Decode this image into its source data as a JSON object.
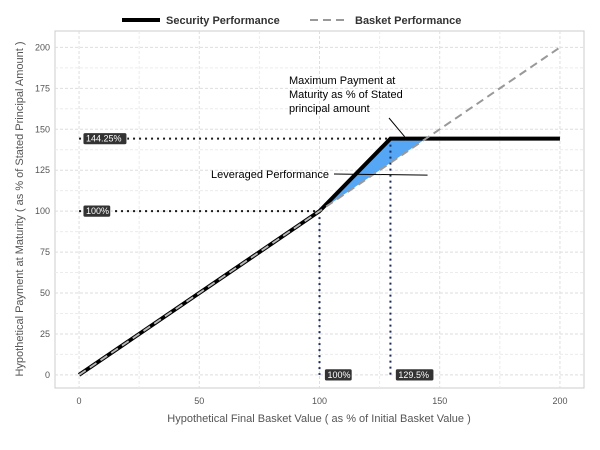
{
  "chart_data": {
    "type": "line",
    "xlabel": "Hypothetical Final Basket Value ( as % of Initial Basket Value )",
    "ylabel": "Hypothetical Payment at Maturity ( as % of Stated Principal Amount )",
    "xlim": [
      -10,
      210
    ],
    "ylim": [
      -8,
      210
    ],
    "x_ticks": [
      0,
      50,
      100,
      150,
      200
    ],
    "y_ticks": [
      0,
      25,
      50,
      75,
      100,
      125,
      150,
      175,
      200
    ],
    "grid": true,
    "legend_position": "top",
    "series": [
      {
        "name": "Security Performance",
        "style": "solid",
        "color": "#000000",
        "points": [
          [
            0,
            0
          ],
          [
            100,
            100
          ],
          [
            129.5,
            144.25
          ],
          [
            200,
            144.25
          ]
        ]
      },
      {
        "name": "Basket Performance",
        "style": "dashed",
        "color": "#999999",
        "points": [
          [
            0,
            0
          ],
          [
            200,
            200
          ]
        ]
      }
    ],
    "leveraged_region": {
      "color": "#55a6f5",
      "points": [
        [
          100,
          100
        ],
        [
          129.5,
          144.25
        ],
        [
          144.25,
          144.25
        ]
      ]
    },
    "reference_lines": {
      "horizontal": [
        144.25,
        100
      ],
      "vertical": [
        100,
        129.5
      ]
    },
    "badges": [
      {
        "label": "144.25%",
        "x": 0,
        "y": 144.25
      },
      {
        "label": "100%",
        "x": 0,
        "y": 100
      },
      {
        "label": "100%",
        "x": 100,
        "y": 0
      },
      {
        "label": "129.5%",
        "x": 129.5,
        "y": 0
      }
    ],
    "annotations": {
      "max_payment": {
        "lines": [
          "Maximum Payment at",
          "Maturity as % of Stated",
          "principal amount"
        ],
        "target": [
          135,
          144.25
        ]
      },
      "leveraged": {
        "text": "Leveraged Performance",
        "target": [
          115,
          122
        ]
      }
    }
  }
}
